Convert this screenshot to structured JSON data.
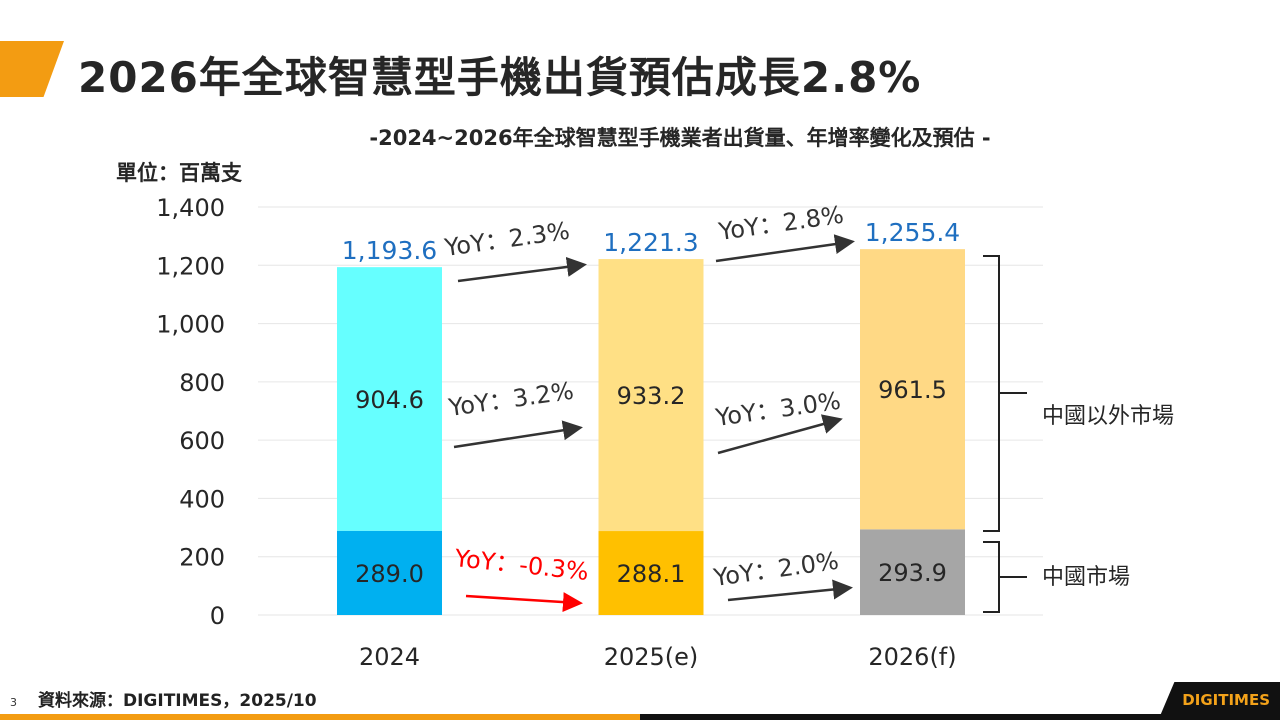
{
  "header": {
    "title": "2026年全球智慧型手機出貨預估成長2.8%"
  },
  "footer": {
    "page_number": "3",
    "source": "資料來源：DIGITIMES，2025/10",
    "logo": "DIGITIMES"
  },
  "chart_data": {
    "type": "bar",
    "stacked": true,
    "title": "-2024~2026年全球智慧型手機業者出貨量、年增率變化及預估 -",
    "ylabel": "單位：百萬支",
    "ylim": [
      0,
      1400
    ],
    "yticks": [
      "0",
      "200",
      "400",
      "600",
      "800",
      "1,000",
      "1,200",
      "1,400"
    ],
    "yticks_values": [
      0,
      200,
      400,
      600,
      800,
      1000,
      1200,
      1400
    ],
    "grid": true,
    "categories": [
      "2024",
      "2025(e)",
      "2026(f)"
    ],
    "series": [
      {
        "name": "中國市場",
        "values": [
          289.0,
          288.1,
          293.9
        ],
        "labels": [
          "289.0",
          "288.1",
          "293.9"
        ],
        "colors": [
          "#00b0f0",
          "#ffc000",
          "#a6a6a6"
        ]
      },
      {
        "name": "中國以外市場",
        "values": [
          904.6,
          933.2,
          961.5
        ],
        "labels": [
          "904.6",
          "933.2",
          "961.5"
        ],
        "colors": [
          "#66ffff",
          "#ffe085",
          "#ffd985"
        ]
      }
    ],
    "totals": {
      "values": [
        1193.6,
        1221.3,
        1255.4
      ],
      "labels": [
        "1,193.6",
        "1,221.3",
        "1,255.4"
      ],
      "color": "#1f6fc0"
    },
    "yoy": {
      "total": [
        "YoY：2.3%",
        "YoY：2.8%"
      ],
      "outside_china": [
        "YoY：3.2%",
        "YoY：3.0%"
      ],
      "china": [
        "YoY：-0.3%",
        "YoY：2.0%"
      ],
      "negative_color": "#ff0000"
    }
  }
}
